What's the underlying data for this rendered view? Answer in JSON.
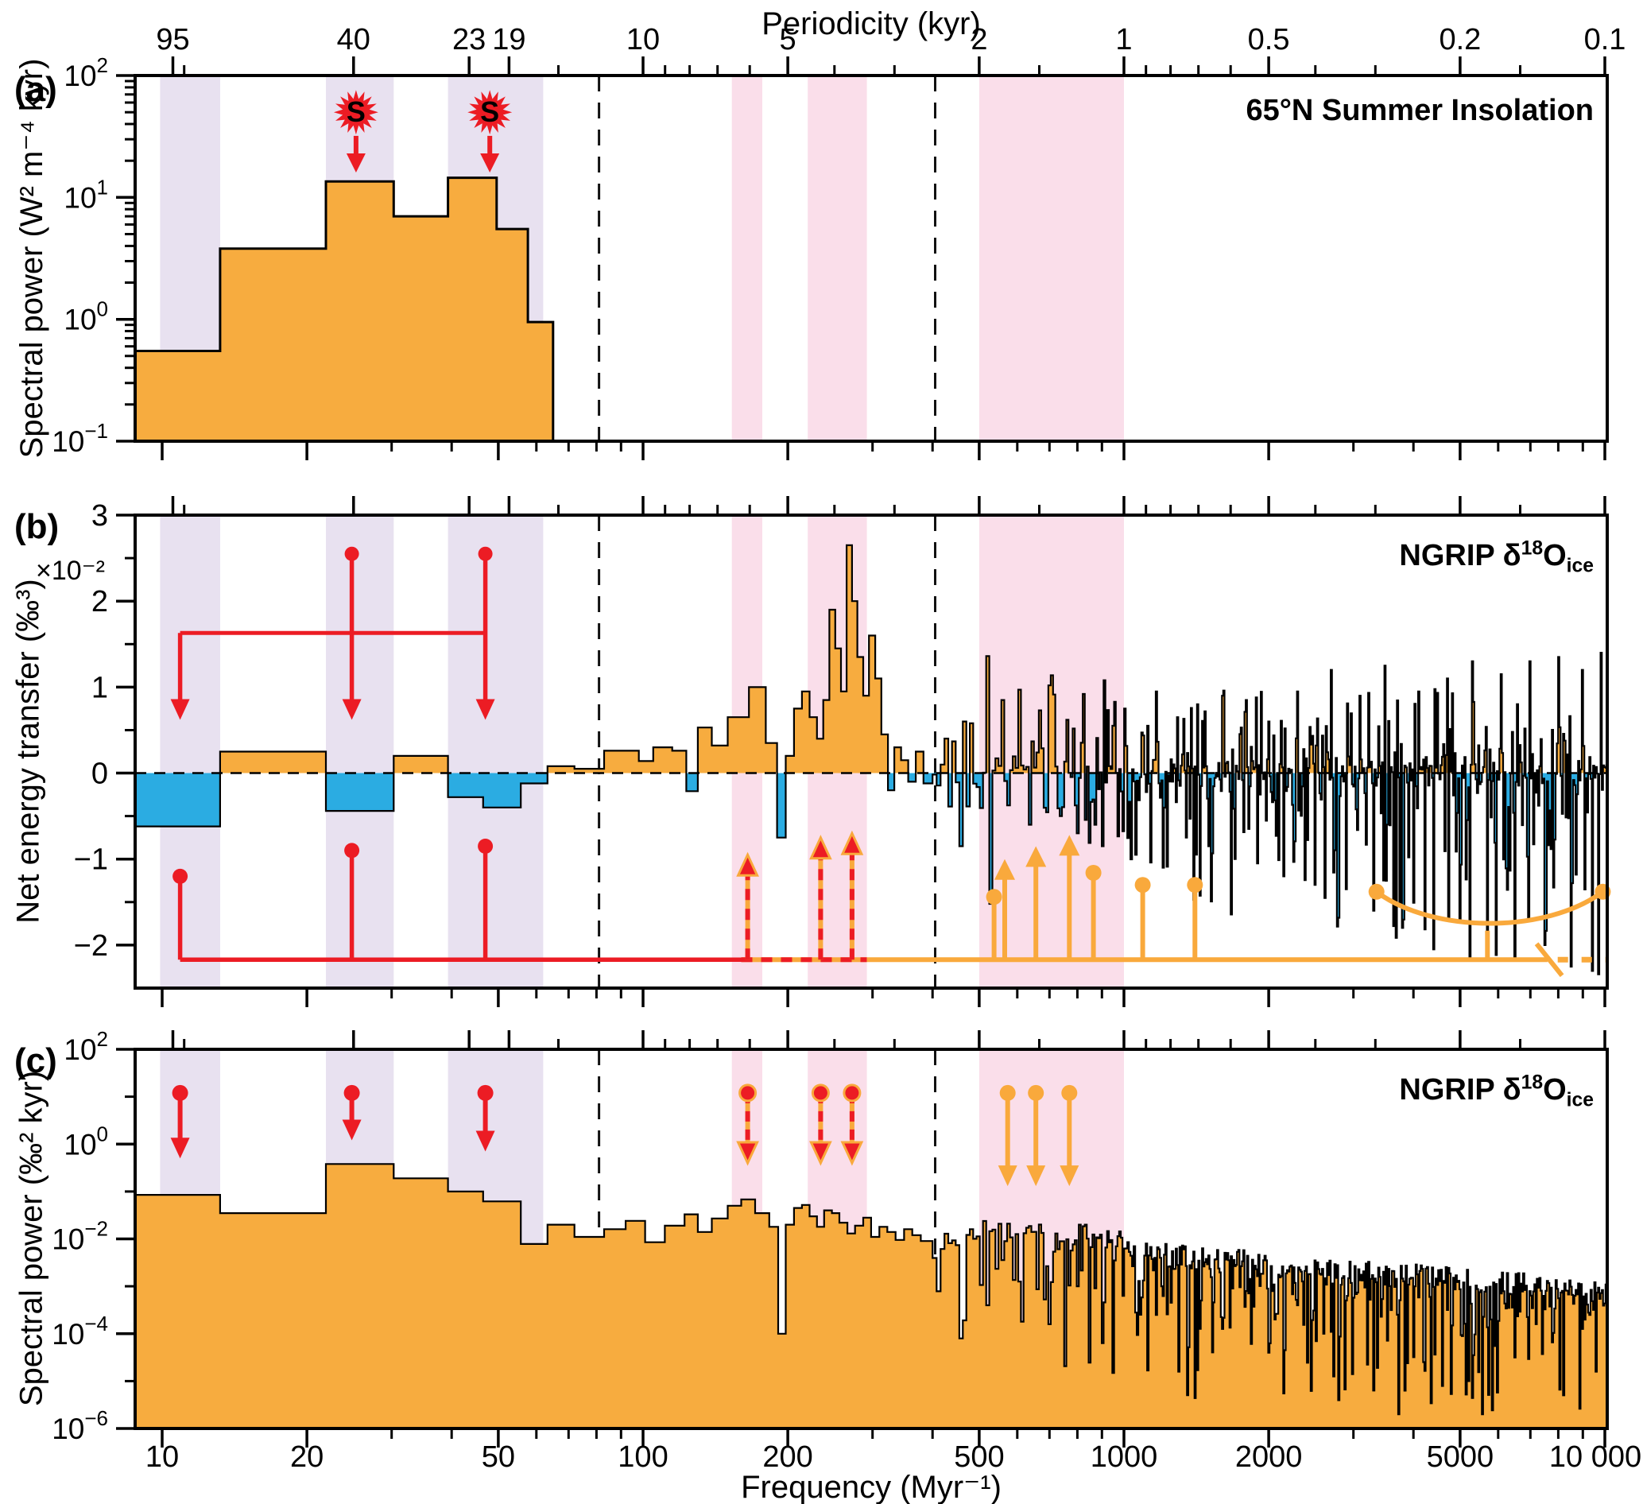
{
  "labels": {
    "periodicity_axis": "Periodicity (kyr)",
    "frequency_axis": "Frequency (Myr⁻¹)",
    "panel_a_letter": "(a)",
    "panel_b_letter": "(b)",
    "panel_c_letter": "(c)"
  },
  "colors": {
    "histogram_orange": "#F7AC3F",
    "histogram_blue": "#2BACE2",
    "band_lavender": "#E8E1F0",
    "band_pink": "#FADEEA",
    "annotation_red": "#EC1C24",
    "annotation_orange": "#F9A93C",
    "outline_black": "#000000"
  },
  "chart_data": {
    "type": [
      "area-step-log",
      "signed-step-histogram",
      "area-step-loglog"
    ],
    "x_axis": {
      "label": "Frequency (Myr⁻¹)",
      "scale": "log",
      "range": [
        8.8,
        10100
      ],
      "major_ticks": [
        {
          "f": 10,
          "label": "10"
        },
        {
          "f": 20,
          "label": "20"
        },
        {
          "f": 50,
          "label": "50"
        },
        {
          "f": 100,
          "label": "100"
        },
        {
          "f": 200,
          "label": "200"
        },
        {
          "f": 500,
          "label": "500"
        },
        {
          "f": 1000,
          "label": "1000"
        },
        {
          "f": 2000,
          "label": "2000"
        },
        {
          "f": 5000,
          "label": "5000"
        },
        {
          "f": 10000,
          "label": "10 000"
        }
      ],
      "minor_ticks": [
        30,
        40,
        60,
        70,
        80,
        90,
        300,
        400,
        600,
        700,
        800,
        900,
        3000,
        4000,
        6000,
        7000,
        8000,
        9000
      ]
    },
    "top_axis": {
      "label": "Periodicity (kyr)",
      "major_ticks": [
        {
          "p": 95,
          "label": "95"
        },
        {
          "p": 40,
          "label": "40"
        },
        {
          "p": 23,
          "label": "23"
        },
        {
          "p": 19,
          "label": "19"
        },
        {
          "p": 10,
          "label": "10"
        },
        {
          "p": 5,
          "label": "5"
        },
        {
          "p": 2,
          "label": "2"
        },
        {
          "p": 1,
          "label": "1"
        },
        {
          "p": 0.5,
          "label": "0.5"
        },
        {
          "p": 0.2,
          "label": "0.2"
        },
        {
          "p": 0.1,
          "label": "0.1"
        }
      ],
      "minor_ticks_periodicity": [
        90,
        15,
        9,
        8,
        7,
        6,
        4,
        3,
        1.5,
        0.9,
        0.8,
        0.7,
        0.6,
        0.4,
        0.3,
        0.15
      ]
    },
    "bands": {
      "lavender_freq": [
        [
          9.9,
          13.2
        ],
        [
          21.9,
          30.3
        ],
        [
          39.3,
          62
        ]
      ],
      "pink_freq": [
        [
          153,
          177
        ],
        [
          220,
          292
        ],
        [
          500,
          1000
        ]
      ]
    },
    "dashed_guides_freq": [
      81,
      405
    ],
    "panels": {
      "a": {
        "title": "65°N Summer Insolation",
        "ylabel": "Spectral power (W² m⁻⁴ kyr)",
        "yscale": "log",
        "ylim": [
          0.1,
          100
        ],
        "ytick_exponents": [
          2,
          1,
          0,
          -1
        ],
        "bins": {
          "freq_edges": [
            8.8,
            13.2,
            21.9,
            30.3,
            39.3,
            49.6,
            57.6,
            65
          ],
          "power": [
            0.55,
            3.8,
            13.5,
            7.0,
            14.5,
            5.5,
            0.95
          ]
        },
        "sun_markers": {
          "symbol": "S",
          "freqs": [
            25.3,
            48
          ],
          "star_value": 50,
          "arrow_from": 32,
          "arrow_tip": 16
        }
      },
      "b": {
        "title_parts": [
          {
            "t": "NGRIP δ"
          },
          {
            "t": "18",
            "sup": true
          },
          {
            "t": "O"
          },
          {
            "t": "ice",
            "sub": true
          }
        ],
        "ylabel": "Net energy transfer (‰³)",
        "scale_factor_label": "×10⁻²",
        "yscale": "linear",
        "ylim": [
          -2.5,
          3
        ],
        "ytick_values": [
          3,
          2,
          1,
          0,
          -1,
          -2
        ],
        "zero_line_dashed": true,
        "bins": {
          "freq_edges": [
            8.8,
            13.2,
            21.9,
            30.3,
            39.3,
            46.5,
            55.7,
            63.3,
            72,
            83,
            98,
            105,
            115,
            123,
            130,
            139,
            150,
            166,
            180,
            190,
            198,
            206,
            214,
            222,
            230,
            237,
            244,
            251,
            258,
            265,
            272,
            279,
            287,
            295,
            304,
            313,
            323,
            333,
            344,
            356,
            369,
            383,
            400
          ],
          "values": [
            -0.62,
            0.25,
            -0.44,
            0.2,
            -0.28,
            -0.4,
            -0.12,
            0.08,
            0.05,
            0.26,
            0.14,
            0.3,
            0.26,
            -0.21,
            0.53,
            0.32,
            0.65,
            1.0,
            0.35,
            -0.75,
            0.2,
            0.75,
            0.95,
            0.65,
            0.4,
            0.85,
            1.9,
            1.45,
            0.95,
            2.65,
            2.0,
            1.35,
            0.9,
            1.6,
            1.1,
            0.45,
            -0.2,
            0.3,
            0.15,
            -0.1,
            0.25,
            -0.12
          ]
        },
        "noise": {
          "note": "dense high-frequency part approximated from figure",
          "f_start": 400,
          "f_end": 10100,
          "df_min": 7.8,
          "df_growth": 0.006,
          "seed": 20240601,
          "neg_amp0": 0.9,
          "neg_amp1": 1.5,
          "pos_amp0": 1.15,
          "pos_amp1": 0.25,
          "clamp": [
            -2.43,
            1.42
          ],
          "features": [
            [
              455,
              -0.85
            ],
            [
              470,
              0.6
            ],
            [
              518,
              1.36
            ],
            [
              531,
              -1.52
            ],
            [
              560,
              0.85
            ],
            [
              604,
              0.97
            ],
            [
              640,
              -0.6
            ],
            [
              672,
              0.73
            ],
            [
              700,
              1.02
            ],
            [
              736,
              -0.5
            ],
            [
              763,
              0.62
            ],
            [
              800,
              -0.7
            ],
            [
              828,
              0.92
            ],
            [
              870,
              -0.6
            ],
            [
              905,
              -0.85
            ],
            [
              950,
              0.55
            ],
            [
              1005,
              0.75
            ],
            [
              1060,
              -0.95
            ],
            [
              1120,
              0.55
            ],
            [
              1170,
              0.95
            ],
            [
              1210,
              -1.1
            ],
            [
              1290,
              0.65
            ],
            [
              1350,
              -0.75
            ],
            [
              1420,
              0.8
            ],
            [
              1500,
              -0.85
            ],
            [
              1600,
              0.9
            ],
            [
              1700,
              -1.0
            ],
            [
              1800,
              0.85
            ],
            [
              1900,
              -1.05
            ],
            [
              2000,
              0.6
            ],
            [
              2150,
              -1.2
            ],
            [
              2300,
              0.95
            ],
            [
              2500,
              -1.3
            ],
            [
              2700,
              1.2
            ],
            [
              2900,
              -1.35
            ],
            [
              3100,
              0.9
            ],
            [
              3300,
              -1.6
            ],
            [
              3500,
              1.25
            ],
            [
              3800,
              -1.8
            ],
            [
              4100,
              0.95
            ],
            [
              4400,
              -2.05
            ],
            [
              4700,
              1.1
            ],
            [
              5000,
              -1.7
            ],
            [
              5300,
              1.3
            ],
            [
              5700,
              -1.95
            ],
            [
              6100,
              1.15
            ],
            [
              6500,
              -2.15
            ],
            [
              7000,
              1.3
            ],
            [
              7500,
              -2.0
            ],
            [
              8000,
              1.35
            ],
            [
              8500,
              -2.25
            ],
            [
              9000,
              1.2
            ],
            [
              9400,
              -2.3
            ],
            [
              9800,
              1.4
            ]
          ]
        },
        "red_top_assembly": {
          "line_value": 1.63,
          "line_span_freq": [
            10.9,
            47
          ],
          "arrow_tip_value": 0.62,
          "stems": [
            {
              "f": 10.9,
              "dot": null
            },
            {
              "f": 24.8,
              "dot": 2.55
            },
            {
              "f": 47,
              "dot": 2.55
            }
          ]
        },
        "red_bottom_assembly": {
          "line_value": -2.17,
          "solid_span_freq": [
            10.9,
            160
          ],
          "stems": [
            {
              "f": 10.9,
              "dot": -1.2
            },
            {
              "f": 24.8,
              "dot": -0.9
            },
            {
              "f": 47,
              "dot": -0.85
            }
          ]
        },
        "dashed_up_arrows": {
          "overlay_span_freq": [
            160,
            292
          ],
          "items": [
            {
              "f": 165,
              "tip": -0.95
            },
            {
              "f": 234,
              "tip": -0.75
            },
            {
              "f": 272,
              "tip": -0.7
            }
          ]
        },
        "orange_line": {
          "value": -2.17,
          "solid_span_freq": [
            292,
            7600
          ],
          "break_freq": 7665,
          "dotted_span_freq": [
            7980,
            10090
          ]
        },
        "orange_dot_stems": [
          {
            "f": 537,
            "dot": -1.44
          },
          {
            "f": 864,
            "dot": -1.16
          },
          {
            "f": 1094,
            "dot": -1.3
          },
          {
            "f": 1405,
            "dot": -1.3
          }
        ],
        "orange_up_arrows": [
          {
            "f": 565,
            "tip": -1.0
          },
          {
            "f": 656,
            "tip": -0.85
          },
          {
            "f": 770,
            "tip": -0.72
          }
        ],
        "orange_bracket": {
          "f1": 3350,
          "f2": 9900,
          "end_value": -1.38,
          "dip_value": -1.74,
          "stem_freq": 5700,
          "stem_to": -2.17
        }
      },
      "c": {
        "title_parts": [
          {
            "t": "NGRIP δ"
          },
          {
            "t": "18",
            "sup": true
          },
          {
            "t": "O"
          },
          {
            "t": "ice",
            "sub": true
          }
        ],
        "ylabel": "Spectral power (‰² kyr)",
        "yscale": "log",
        "ylim": [
          1e-06,
          100
        ],
        "ytick_exponents": [
          2,
          0,
          -2,
          -4,
          -6
        ],
        "minor_tick_exponents": [
          1,
          -1,
          -3,
          -5
        ],
        "bins": {
          "freq_edges": [
            8.8,
            13.2,
            21.9,
            30.3,
            39.3,
            46.5,
            55.7,
            63.3,
            72,
            83,
            92,
            101,
            111,
            122,
            130,
            139,
            150,
            160,
            171,
            183,
            191,
            198,
            206,
            214,
            222,
            230,
            238,
            247,
            256,
            266,
            276,
            287,
            298,
            310,
            322,
            335,
            349,
            363,
            378,
            400
          ],
          "power": [
            0.085,
            0.035,
            0.38,
            0.19,
            0.1,
            0.062,
            0.0078,
            0.02,
            0.011,
            0.016,
            0.024,
            0.0085,
            0.019,
            0.033,
            0.014,
            0.027,
            0.05,
            0.068,
            0.035,
            0.018,
            0.0001,
            0.02,
            0.045,
            0.052,
            0.03,
            0.018,
            0.04,
            0.035,
            0.022,
            0.013,
            0.019,
            0.028,
            0.011,
            0.018,
            0.014,
            0.0095,
            0.016,
            0.012,
            0.009
          ]
        },
        "noise": {
          "note": "dense high-frequency part approximated from figure",
          "f_start": 400,
          "f_end": 10100,
          "df_min": 7.8,
          "df_growth": 0.006,
          "seed": 77001,
          "log_top0": -1.95,
          "log_slope": 1.15,
          "jitter": 0.5,
          "spike": 3.2,
          "band_bump": [
            500,
            1000,
            0.28
          ],
          "log_min": -5.7,
          "features_log10": [
            [
              455,
              -4.1
            ],
            [
              520,
              -3.4
            ],
            [
              610,
              -2.9
            ],
            [
              700,
              -3.8
            ],
            [
              800,
              -3.0
            ],
            [
              900,
              -4.2
            ],
            [
              1000,
              -3.2
            ],
            [
              1080,
              -3.6
            ],
            [
              1200,
              -3.0
            ],
            [
              1300,
              -4.8
            ],
            [
              1450,
              -3.3
            ],
            [
              1600,
              -3.9
            ],
            [
              1800,
              -3.1
            ],
            [
              2000,
              -4.4
            ],
            [
              2300,
              -3.4
            ],
            [
              2600,
              -4.0
            ],
            [
              2900,
              -3.3
            ],
            [
              3300,
              -5.2
            ],
            [
              3700,
              -3.6
            ],
            [
              4200,
              -4.6
            ],
            [
              4700,
              -3.5
            ],
            [
              5200,
              -5.0
            ],
            [
              5800,
              -3.7
            ],
            [
              6500,
              -4.5
            ],
            [
              7200,
              -3.8
            ],
            [
              8200,
              -5.3
            ],
            [
              9000,
              -3.9
            ],
            [
              9600,
              -4.8
            ]
          ]
        },
        "red_down_arrows": [
          {
            "f": 10.9,
            "dot": 12,
            "tip": 0.5
          },
          {
            "f": 24.8,
            "dot": 12,
            "tip": 1.2
          },
          {
            "f": 47,
            "dot": 12,
            "tip": 0.7
          }
        ],
        "dashed_down_arrows": [
          {
            "f": 165,
            "dot": 12,
            "tip": 0.4
          },
          {
            "f": 234,
            "dot": 12,
            "tip": 0.4
          },
          {
            "f": 272,
            "dot": 12,
            "tip": 0.4
          }
        ],
        "orange_down_arrows": [
          {
            "f": 573,
            "dot": 12,
            "tip": 0.13
          },
          {
            "f": 656,
            "dot": 12,
            "tip": 0.13
          },
          {
            "f": 770,
            "dot": 12,
            "tip": 0.13
          }
        ]
      }
    }
  }
}
